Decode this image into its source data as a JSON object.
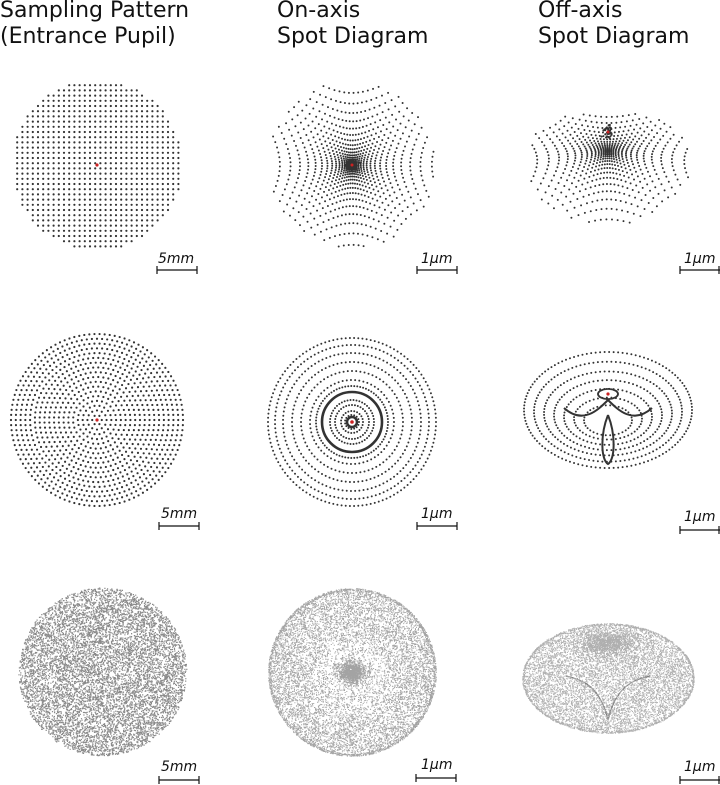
{
  "columns": [
    {
      "line1": "Sampling Pattern",
      "line2": "(Entrance Pupil)"
    },
    {
      "line1": "On-axis",
      "line2": "Spot Diagram"
    },
    {
      "line1": "Off-axis",
      "line2": "Spot Diagram"
    }
  ],
  "rows": [
    {
      "pattern": "square-grid",
      "scale_bars": [
        "5mm",
        "1μm",
        "1μm"
      ]
    },
    {
      "pattern": "concentric-rings",
      "scale_bars": [
        "5mm",
        "1μm",
        "1μm"
      ]
    },
    {
      "pattern": "random",
      "scale_bars": [
        "5mm",
        "1μm",
        "1μm"
      ]
    }
  ],
  "colors": {
    "dot": "#333333",
    "chief_ray": "#cc2222",
    "text": "#111111"
  }
}
